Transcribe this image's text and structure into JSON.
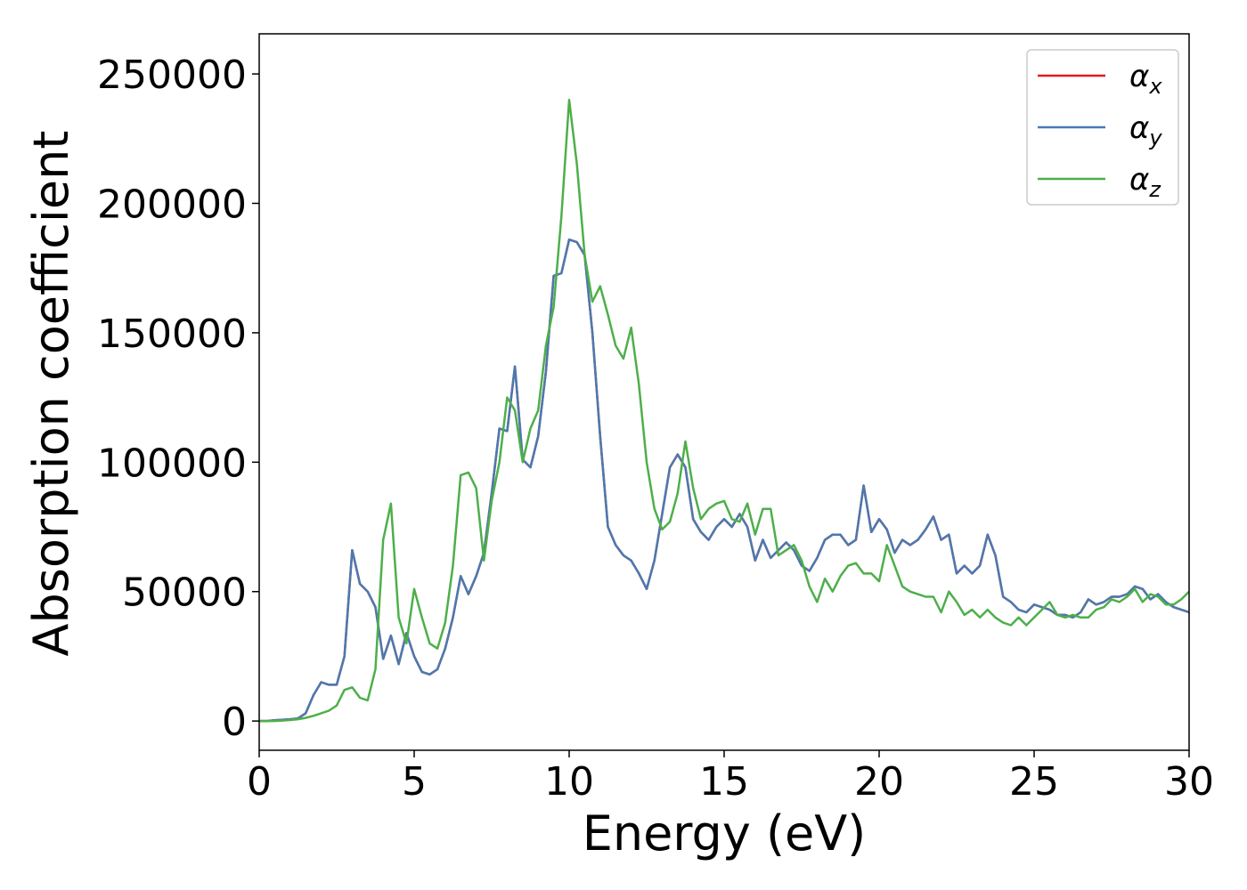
{
  "chart_data": {
    "type": "line",
    "xlabel": "Energy (eV)",
    "ylabel": "Absorption coefficient",
    "x": [
      0,
      0.25,
      0.5,
      0.75,
      1,
      1.25,
      1.5,
      1.75,
      2,
      2.25,
      2.5,
      2.75,
      3,
      3.25,
      3.5,
      3.75,
      4,
      4.25,
      4.5,
      4.75,
      5,
      5.25,
      5.5,
      5.75,
      6,
      6.25,
      6.5,
      6.75,
      7,
      7.25,
      7.5,
      7.75,
      8,
      8.25,
      8.5,
      8.75,
      9,
      9.25,
      9.5,
      9.75,
      10,
      10.25,
      10.5,
      10.75,
      11,
      11.25,
      11.5,
      11.75,
      12,
      12.25,
      12.5,
      12.75,
      13,
      13.25,
      13.5,
      13.75,
      14,
      14.25,
      14.5,
      14.75,
      15,
      15.25,
      15.5,
      15.75,
      16,
      16.25,
      16.5,
      16.75,
      17,
      17.25,
      17.5,
      17.75,
      18,
      18.25,
      18.5,
      18.75,
      19,
      19.25,
      19.5,
      19.75,
      20,
      20.25,
      20.5,
      20.75,
      21,
      21.25,
      21.5,
      21.75,
      22,
      22.25,
      22.5,
      22.75,
      23,
      23.25,
      23.5,
      23.75,
      24,
      24.25,
      24.5,
      24.75,
      25,
      25.25,
      25.5,
      25.75,
      26,
      26.25,
      26.5,
      26.75,
      27,
      27.25,
      27.5,
      27.75,
      28,
      28.25,
      28.5,
      28.75,
      29,
      29.25,
      29.5,
      29.75,
      30
    ],
    "series": [
      {
        "name": "αx",
        "color": "#e41a1c",
        "values": [
          0,
          0,
          300,
          500,
          700,
          1000,
          3000,
          10000,
          15000,
          14000,
          14000,
          25000,
          66000,
          53000,
          50000,
          44000,
          24000,
          33000,
          22000,
          34000,
          25000,
          19000,
          18000,
          20000,
          28000,
          40000,
          56000,
          49000,
          56000,
          65000,
          88000,
          113000,
          112000,
          137000,
          101000,
          98000,
          110000,
          135000,
          172000,
          173000,
          186000,
          185000,
          180000,
          150000,
          110000,
          75000,
          68000,
          64000,
          62000,
          57000,
          51000,
          62000,
          80000,
          98000,
          103000,
          98000,
          78000,
          73000,
          70000,
          75000,
          78000,
          75000,
          80000,
          75000,
          62000,
          70000,
          63000,
          66000,
          69000,
          66000,
          60000,
          58000,
          63000,
          70000,
          72000,
          72000,
          68000,
          70000,
          91000,
          73000,
          78000,
          74000,
          65000,
          70000,
          68000,
          70000,
          74000,
          79000,
          70000,
          72000,
          57000,
          60000,
          57000,
          60000,
          72000,
          64000,
          48000,
          46000,
          43000,
          42000,
          45000,
          44000,
          43000,
          41000,
          41000,
          40000,
          42000,
          47000,
          45000,
          46000,
          48000,
          48000,
          49000,
          52000,
          51000,
          47000,
          49000,
          46000,
          44000,
          43000,
          42000
        ]
      },
      {
        "name": "αy",
        "color": "#4a7ab0",
        "values": [
          0,
          0,
          300,
          500,
          700,
          1000,
          3000,
          10000,
          15000,
          14000,
          14000,
          25000,
          66000,
          53000,
          50000,
          44000,
          24000,
          33000,
          22000,
          34000,
          25000,
          19000,
          18000,
          20000,
          28000,
          40000,
          56000,
          49000,
          56000,
          65000,
          88000,
          113000,
          112000,
          137000,
          101000,
          98000,
          110000,
          135000,
          172000,
          173000,
          186000,
          185000,
          180000,
          150000,
          110000,
          75000,
          68000,
          64000,
          62000,
          57000,
          51000,
          62000,
          80000,
          98000,
          103000,
          98000,
          78000,
          73000,
          70000,
          75000,
          78000,
          75000,
          80000,
          75000,
          62000,
          70000,
          63000,
          66000,
          69000,
          66000,
          60000,
          58000,
          63000,
          70000,
          72000,
          72000,
          68000,
          70000,
          91000,
          73000,
          78000,
          74000,
          65000,
          70000,
          68000,
          70000,
          74000,
          79000,
          70000,
          72000,
          57000,
          60000,
          57000,
          60000,
          72000,
          64000,
          48000,
          46000,
          43000,
          42000,
          45000,
          44000,
          43000,
          41000,
          41000,
          40000,
          42000,
          47000,
          45000,
          46000,
          48000,
          48000,
          49000,
          52000,
          51000,
          47000,
          49000,
          46000,
          44000,
          43000,
          42000
        ]
      },
      {
        "name": "αz",
        "color": "#4daf4a",
        "values": [
          0,
          0,
          0,
          200,
          400,
          700,
          1200,
          2000,
          3000,
          4000,
          6000,
          12000,
          13000,
          9000,
          8000,
          20000,
          70000,
          84000,
          40000,
          30000,
          51000,
          40000,
          30000,
          28000,
          38000,
          60000,
          95000,
          96000,
          90000,
          62000,
          85000,
          100000,
          125000,
          120000,
          100000,
          113000,
          120000,
          145000,
          160000,
          195000,
          240000,
          215000,
          180000,
          162000,
          168000,
          157000,
          145000,
          140000,
          152000,
          130000,
          100000,
          82000,
          74000,
          77000,
          88000,
          108000,
          90000,
          78000,
          82000,
          84000,
          85000,
          78000,
          77000,
          84000,
          72000,
          82000,
          82000,
          64000,
          66000,
          68000,
          62000,
          52000,
          46000,
          55000,
          50000,
          56000,
          60000,
          61000,
          57000,
          57000,
          54000,
          68000,
          60000,
          52000,
          50000,
          49000,
          48000,
          48000,
          42000,
          50000,
          46000,
          41000,
          43000,
          40000,
          43000,
          40000,
          38000,
          37000,
          40000,
          37000,
          40000,
          43000,
          46000,
          41000,
          40000,
          41000,
          40000,
          40000,
          43000,
          44000,
          47000,
          46000,
          48000,
          51000,
          46000,
          49000,
          48000,
          45000,
          45000,
          47000,
          50000
        ]
      }
    ],
    "xlim": [
      0,
      30
    ],
    "xticks": [
      0,
      5,
      10,
      15,
      20,
      25,
      30
    ],
    "ylim": [
      -11300,
      265500
    ],
    "yticks": [
      0,
      50000,
      100000,
      150000,
      200000,
      250000
    ],
    "legend": "upper right"
  }
}
